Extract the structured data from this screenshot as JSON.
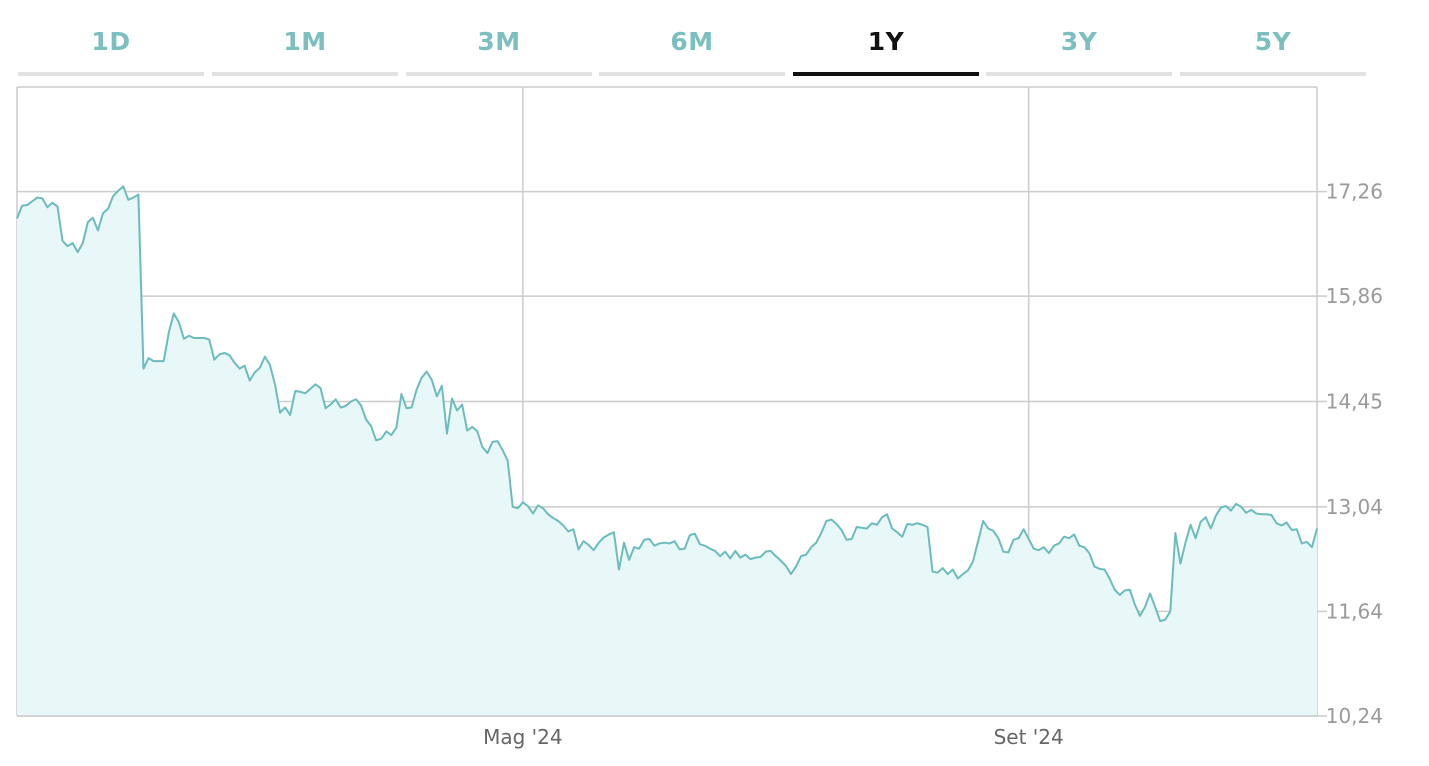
{
  "tabs": [
    {
      "label": "1D",
      "active": false
    },
    {
      "label": "1M",
      "active": false
    },
    {
      "label": "3M",
      "active": false
    },
    {
      "label": "6M",
      "active": false
    },
    {
      "label": "1Y",
      "active": true
    },
    {
      "label": "3Y",
      "active": false
    },
    {
      "label": "5Y",
      "active": false
    }
  ],
  "colors": {
    "line": "#6dbcbd",
    "fill": "#e8f7f7",
    "grid": "#cccccc",
    "tab_inactive": "#7cbfc0",
    "tab_active": "#111111"
  },
  "chart_data": {
    "type": "area",
    "title": "",
    "xlabel": "",
    "ylabel": "",
    "ylim": [
      10.24,
      18.66
    ],
    "yticks": [
      {
        "value": 17.26,
        "label": "17,26"
      },
      {
        "value": 15.86,
        "label": "15,86"
      },
      {
        "value": 14.45,
        "label": "14,45"
      },
      {
        "value": 13.04,
        "label": "13,04"
      },
      {
        "value": 11.64,
        "label": "11,64"
      },
      {
        "value": 10.24,
        "label": "10,24"
      }
    ],
    "xticks": [
      {
        "index": 100,
        "label": "Mag '24"
      },
      {
        "index": 200,
        "label": "Set '24"
      }
    ],
    "grid": true,
    "series": [
      {
        "values": [
          16.9,
          17.07,
          17.08,
          17.13,
          17.18,
          17.17,
          17.05,
          17.11,
          17.06,
          16.6,
          16.53,
          16.57,
          16.45,
          16.57,
          16.85,
          16.91,
          16.74,
          16.97,
          17.03,
          17.2,
          17.27,
          17.33,
          17.15,
          17.18,
          17.22,
          14.89,
          15.03,
          14.99,
          14.99,
          14.99,
          15.37,
          15.63,
          15.51,
          15.29,
          15.33,
          15.3,
          15.3,
          15.3,
          15.28,
          15.01,
          15.08,
          15.1,
          15.07,
          14.97,
          14.89,
          14.93,
          14.73,
          14.84,
          14.9,
          15.05,
          14.94,
          14.68,
          14.3,
          14.37,
          14.27,
          14.59,
          14.58,
          14.56,
          14.62,
          14.68,
          14.63,
          14.36,
          14.41,
          14.48,
          14.37,
          14.39,
          14.45,
          14.48,
          14.4,
          14.21,
          14.12,
          13.93,
          13.95,
          14.05,
          14,
          14.1,
          14.55,
          14.36,
          14.37,
          14.61,
          14.77,
          14.85,
          14.74,
          14.52,
          14.66,
          14.02,
          14.49,
          14.33,
          14.41,
          14.06,
          14.11,
          14.05,
          13.84,
          13.76,
          13.91,
          13.92,
          13.8,
          13.66,
          13.04,
          13.02,
          13.1,
          13.05,
          12.95,
          13.06,
          13.02,
          12.94,
          12.89,
          12.85,
          12.79,
          12.71,
          12.74,
          12.47,
          12.58,
          12.53,
          12.46,
          12.56,
          12.63,
          12.67,
          12.7,
          12.2,
          12.56,
          12.33,
          12.5,
          12.48,
          12.6,
          12.61,
          12.52,
          12.55,
          12.56,
          12.55,
          12.58,
          12.47,
          12.48,
          12.66,
          12.68,
          12.54,
          12.52,
          12.48,
          12.45,
          12.38,
          12.44,
          12.35,
          12.45,
          12.36,
          12.4,
          12.34,
          12.36,
          12.37,
          12.44,
          12.45,
          12.38,
          12.32,
          12.25,
          12.14,
          12.24,
          12.38,
          12.4,
          12.5,
          12.56,
          12.69,
          12.85,
          12.87,
          12.81,
          12.73,
          12.6,
          12.61,
          12.77,
          12.76,
          12.75,
          12.82,
          12.8,
          12.9,
          12.94,
          12.75,
          12.7,
          12.64,
          12.81,
          12.8,
          12.82,
          12.8,
          12.77,
          12.17,
          12.16,
          12.22,
          12.14,
          12.2,
          12.08,
          12.14,
          12.19,
          12.31,
          12.58,
          12.85,
          12.75,
          12.72,
          12.62,
          12.44,
          12.43,
          12.6,
          12.62,
          12.74,
          12.61,
          12.48,
          12.46,
          12.5,
          12.42,
          12.52,
          12.55,
          12.64,
          12.62,
          12.67,
          12.52,
          12.5,
          12.42,
          12.24,
          12.21,
          12.2,
          12.08,
          11.93,
          11.86,
          11.92,
          11.93,
          11.73,
          11.58,
          11.7,
          11.88,
          11.7,
          11.51,
          11.53,
          11.64,
          12.69,
          12.28,
          12.56,
          12.8,
          12.62,
          12.84,
          12.9,
          12.75,
          12.92,
          13.03,
          13.05,
          12.99,
          13.08,
          13.04,
          12.96,
          13,
          12.95,
          12.94,
          12.94,
          12.93,
          12.82,
          12.79,
          12.83,
          12.73,
          12.74,
          12.55,
          12.57,
          12.5,
          12.75
        ]
      }
    ]
  }
}
